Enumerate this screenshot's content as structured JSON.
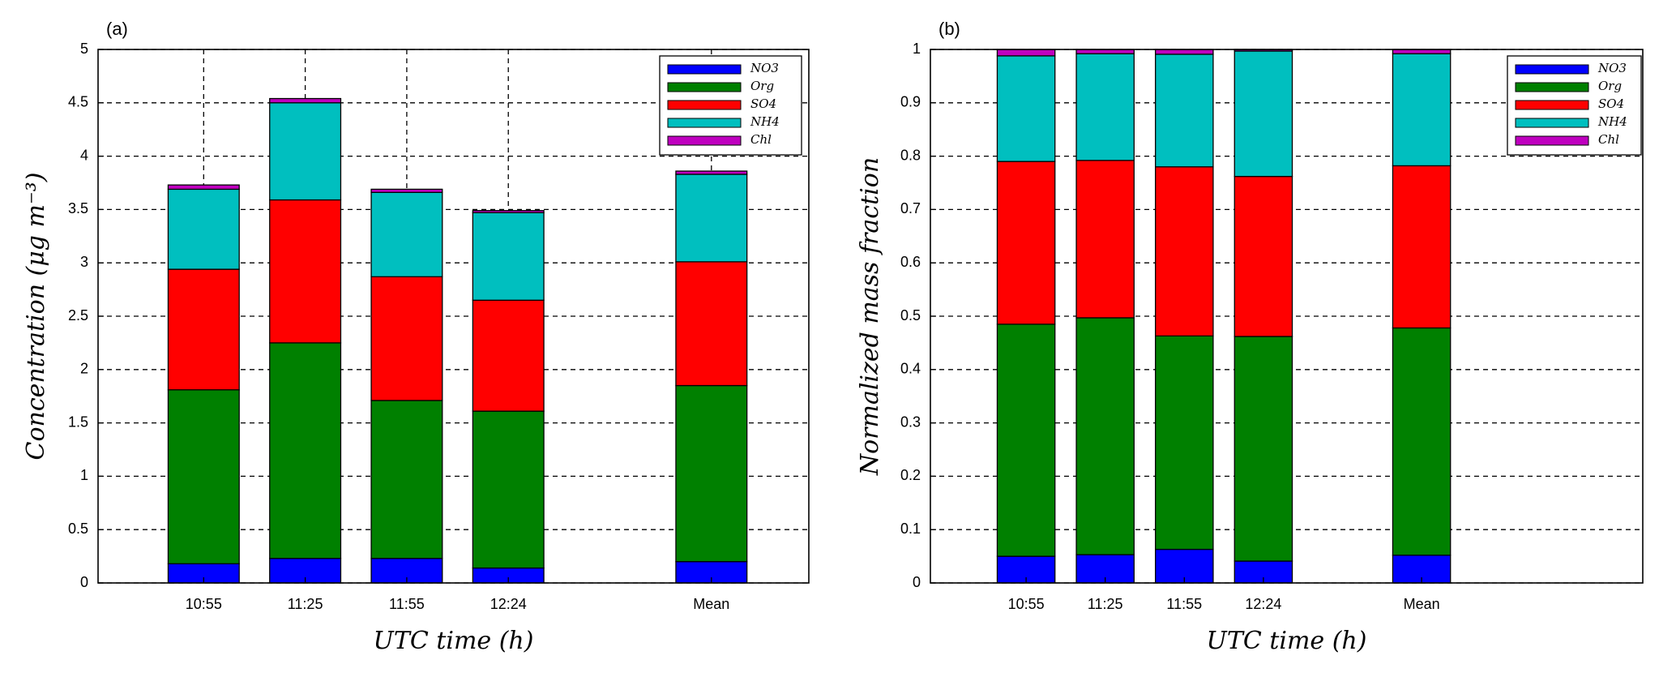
{
  "chart_data": [
    {
      "type": "bar",
      "stacked": true,
      "title": "(a)",
      "x_label": "UTC time (h)",
      "y_label": "Concentration (μg m⁻³)",
      "categories": [
        "10:55",
        "11:25",
        "11:55",
        "12:24",
        null,
        "Mean"
      ],
      "series": [
        {
          "name": "NO3",
          "color": "#0000ff",
          "values": [
            0.18,
            0.23,
            0.23,
            0.14,
            null,
            0.2
          ]
        },
        {
          "name": "Org",
          "color": "#008000",
          "values": [
            1.63,
            2.02,
            1.48,
            1.47,
            null,
            1.65
          ]
        },
        {
          "name": "SO4",
          "color": "#ff0000",
          "values": [
            1.13,
            1.34,
            1.16,
            1.04,
            null,
            1.16
          ]
        },
        {
          "name": "NH4",
          "color": "#00bfbf",
          "values": [
            0.75,
            0.91,
            0.79,
            0.82,
            null,
            0.82
          ]
        },
        {
          "name": "Chl",
          "color": "#bf00bf",
          "values": [
            0.04,
            0.04,
            0.03,
            0.02,
            null,
            0.03
          ]
        }
      ],
      "ylim": [
        0,
        5
      ],
      "yticks": [
        0,
        0.5,
        1,
        1.5,
        2,
        2.5,
        3,
        3.5,
        4,
        4.5,
        5
      ],
      "grid": true,
      "legend": "upper right"
    },
    {
      "type": "bar",
      "stacked": true,
      "title": "(b)",
      "x_label": "UTC time (h)",
      "y_label": "Normalized mass fraction",
      "categories": [
        "10:55",
        "11:25",
        "11:55",
        "12:24",
        null,
        "Mean"
      ],
      "series": [
        {
          "name": "NO3",
          "color": "#0000ff",
          "values": [
            0.05,
            0.053,
            0.063,
            0.041,
            null,
            0.052
          ]
        },
        {
          "name": "Org",
          "color": "#008000",
          "values": [
            0.435,
            0.444,
            0.4,
            0.421,
            null,
            0.426
          ]
        },
        {
          "name": "SO4",
          "color": "#ff0000",
          "values": [
            0.305,
            0.295,
            0.317,
            0.3,
            null,
            0.304
          ]
        },
        {
          "name": "NH4",
          "color": "#00bfbf",
          "values": [
            0.198,
            0.2,
            0.211,
            0.235,
            null,
            0.21
          ]
        },
        {
          "name": "Chl",
          "color": "#bf00bf",
          "values": [
            0.012,
            0.008,
            0.009,
            0.003,
            null,
            0.008
          ]
        }
      ],
      "ylim": [
        0,
        1
      ],
      "yticks": [
        0,
        0.1,
        0.2,
        0.3,
        0.4,
        0.5,
        0.6,
        0.7,
        0.8,
        0.9,
        1
      ],
      "grid": true,
      "legend": "upper right"
    }
  ]
}
